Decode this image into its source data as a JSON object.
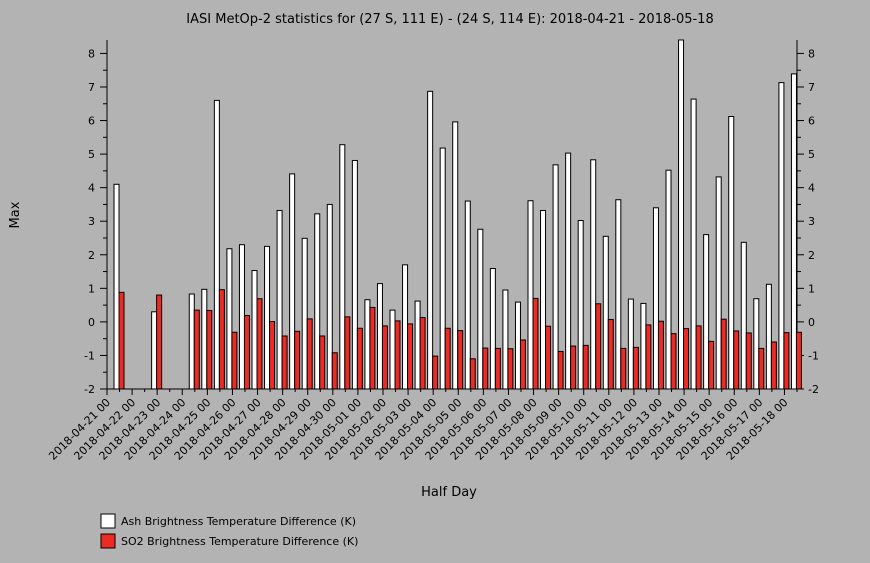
{
  "chart_data": {
    "type": "bar",
    "title": "IASI MetOp-2 statistics for (27 S, 111 E) - (24 S, 114 E): 2018-04-21 - 2018-05-18",
    "xlabel": "Half Day",
    "ylabel": "Max",
    "ylim": [
      -2,
      8.4
    ],
    "yticks": [
      -2,
      -1,
      0,
      1,
      2,
      3,
      4,
      5,
      6,
      7,
      8
    ],
    "grid": false,
    "legend_position": "bottom-left",
    "x_tick_labels": [
      "2018-04-21 00",
      "2018-04-22 00",
      "2018-04-23 00",
      "2018-04-24 00",
      "2018-04-25 00",
      "2018-04-26 00",
      "2018-04-27 00",
      "2018-04-28 00",
      "2018-04-29 00",
      "2018-04-30 00",
      "2018-05-01 00",
      "2018-05-02 00",
      "2018-05-03 00",
      "2018-05-04 00",
      "2018-05-05 00",
      "2018-05-06 00",
      "2018-05-07 00",
      "2018-05-08 00",
      "2018-05-09 00",
      "2018-05-10 00",
      "2018-05-11 00",
      "2018-05-12 00",
      "2018-05-13 00",
      "2018-05-14 00",
      "2018-05-15 00",
      "2018-05-16 00",
      "2018-05-17 00",
      "2018-05-18 00"
    ],
    "x_tick_label_step": 2,
    "series": [
      {
        "name": "Ash Brightness Temperature Difference (K)",
        "color": "#ffffff",
        "values": [
          4.1,
          null,
          null,
          0.3,
          null,
          null,
          0.83,
          0.97,
          6.6,
          2.18,
          2.3,
          1.53,
          2.25,
          3.32,
          4.41,
          2.49,
          3.22,
          3.5,
          5.28,
          4.81,
          0.66,
          1.14,
          0.35,
          1.7,
          0.62,
          6.87,
          5.18,
          5.96,
          3.6,
          2.76,
          1.59,
          0.95,
          0.59,
          3.61,
          3.32,
          4.68,
          5.03,
          3.02,
          4.83,
          2.55,
          3.64,
          0.68,
          0.55,
          3.4,
          4.52,
          8.4,
          6.64,
          2.6,
          4.32,
          6.12,
          2.37,
          0.69,
          1.12,
          7.13,
          7.39
        ]
      },
      {
        "name": "SO2 Brightness Temperature Difference (K)",
        "color": "#ee2a24",
        "values": [
          0.88,
          null,
          null,
          0.8,
          null,
          null,
          0.35,
          0.34,
          0.96,
          -0.31,
          0.19,
          0.69,
          0.01,
          -0.42,
          -0.28,
          0.09,
          -0.42,
          -0.92,
          0.15,
          -0.19,
          0.43,
          -0.12,
          0.03,
          -0.06,
          0.13,
          -1.02,
          -0.19,
          -0.26,
          -1.1,
          -0.78,
          -0.79,
          -0.8,
          -0.54,
          0.7,
          -0.13,
          -0.88,
          -0.72,
          -0.7,
          0.54,
          0.07,
          -0.79,
          -0.76,
          -0.09,
          0.02,
          -0.35,
          -0.2,
          -0.12,
          -0.58,
          0.08,
          -0.27,
          -0.33,
          -0.79,
          -0.6,
          -0.32,
          -0.31
        ]
      }
    ]
  }
}
